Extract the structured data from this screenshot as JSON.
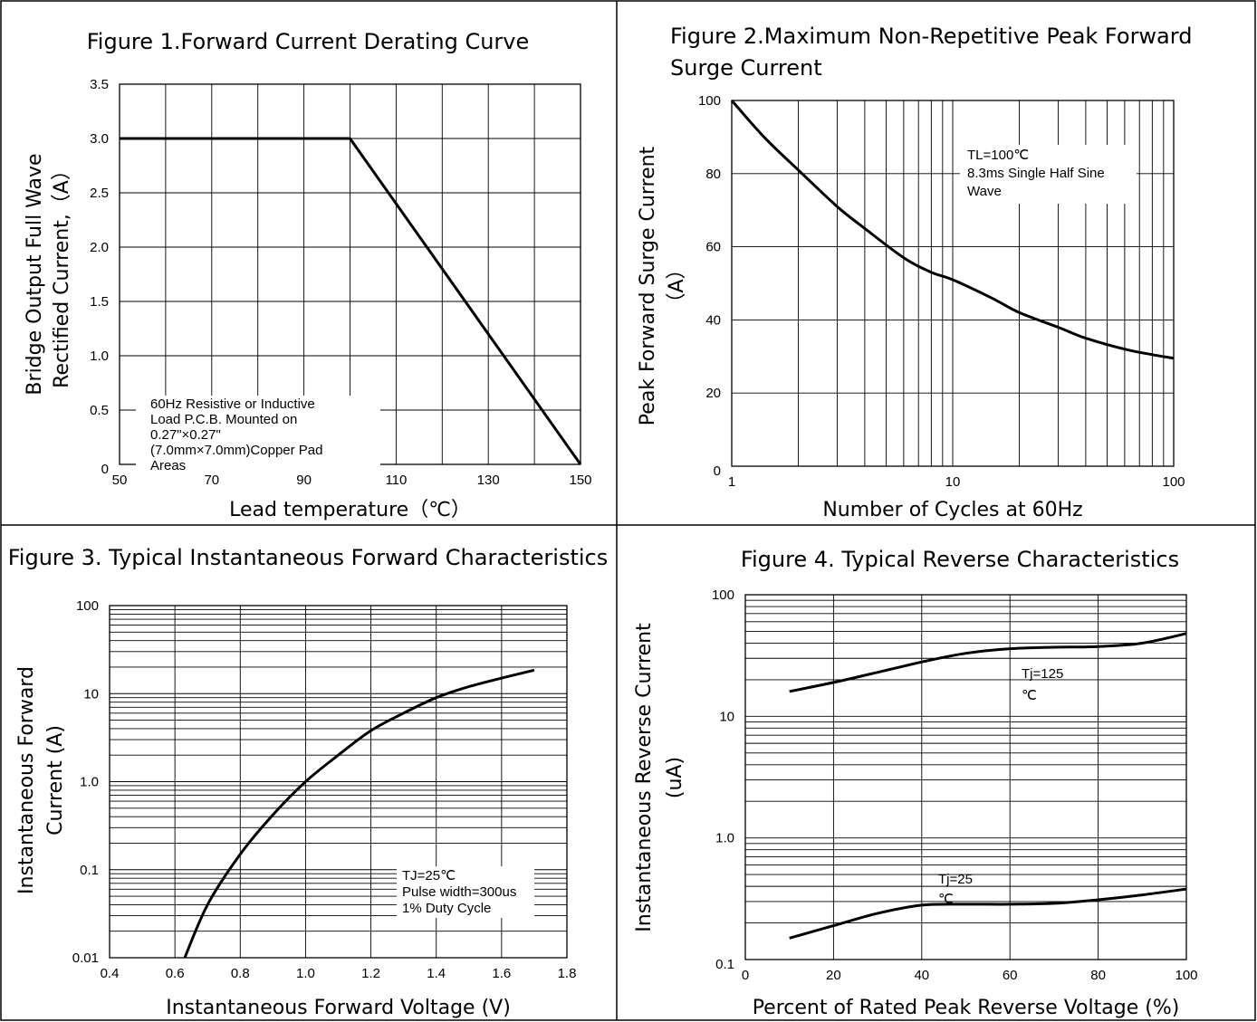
{
  "chart_data": [
    {
      "type": "line",
      "title": "Figure 1.Forward Current Derating Curve",
      "xlabel": "Lead temperature（℃）",
      "ylabel": [
        "Bridge Output Full Wave",
        "Rectified Current,（A）"
      ],
      "xlim": [
        50,
        150
      ],
      "ylim": [
        0,
        3.5
      ],
      "xticks": [
        "50",
        "70",
        "90",
        "110",
        "130",
        "150"
      ],
      "yticks": [
        "0",
        "0.5",
        "1.0",
        "1.5",
        "2.0",
        "2.5",
        "3.0",
        "3.5"
      ],
      "annotation": [
        "60Hz Resistive or Inductive",
        "Load P.C.B. Mounted on",
        "0.27\"×0.27\"",
        "(7.0mm×7.0mm)Copper Pad",
        "Areas"
      ],
      "series": [
        {
          "x": [
            50,
            100,
            150
          ],
          "y": [
            3.0,
            3.0,
            0.0
          ]
        }
      ],
      "grid": true
    },
    {
      "type": "line",
      "title": [
        "Figure 2.Maximum Non-Repetitive Peak Forward",
        "Surge Current"
      ],
      "xlabel": "Number of Cycles at 60Hz",
      "ylabel": [
        "Peak Forward Surge Current",
        "（A）"
      ],
      "xscale": "log",
      "xlim": [
        1,
        100
      ],
      "ylim": [
        0,
        100
      ],
      "xticks": [
        "1",
        "10",
        "100"
      ],
      "yticks": [
        "0",
        "20",
        "40",
        "60",
        "80",
        "100"
      ],
      "annotation": [
        "TL=100℃",
        "8.3ms Single Half Sine",
        "Wave"
      ],
      "series": [
        {
          "x": [
            1,
            1.4,
            2,
            3,
            4,
            6,
            8,
            10,
            15,
            20,
            30,
            40,
            60,
            80,
            100
          ],
          "y": [
            100,
            90,
            81,
            71,
            65,
            57,
            53,
            51,
            46,
            42,
            38,
            35,
            32,
            30.5,
            29.5
          ]
        }
      ],
      "grid": true
    },
    {
      "type": "line",
      "title": "Figure 3. Typical Instantaneous Forward Characteristics",
      "xlabel": "Instantaneous Forward Voltage (V)",
      "ylabel": [
        "Instantaneous Forward",
        "Current (A)"
      ],
      "yscale": "log",
      "xlim": [
        0.4,
        1.8
      ],
      "ylim": [
        0.01,
        100
      ],
      "xticks": [
        "0.4",
        "0.6",
        "0.8",
        "1.0",
        "1.2",
        "1.4",
        "1.6",
        "1.8"
      ],
      "yticks": [
        "0.01",
        "0.1",
        "1.0",
        "10",
        "100"
      ],
      "annotation": [
        "TJ=25℃",
        "Pulse width=300us",
        "1% Duty Cycle"
      ],
      "series": [
        {
          "x": [
            0.63,
            0.7,
            0.8,
            0.9,
            1.0,
            1.1,
            1.2,
            1.3,
            1.4,
            1.5,
            1.6,
            1.7
          ],
          "y": [
            0.01,
            0.04,
            0.15,
            0.42,
            1.0,
            2.0,
            3.8,
            6.0,
            9.0,
            12.0,
            15.0,
            18.5
          ]
        }
      ],
      "grid": true
    },
    {
      "type": "line",
      "title": "Figure 4. Typical Reverse Characteristics",
      "xlabel": "Percent of  Rated Peak Reverse Voltage (%)",
      "ylabel": [
        "Instantaneous Reverse Current",
        "(uA)"
      ],
      "yscale": "log",
      "xlim": [
        0,
        100
      ],
      "ylim": [
        0.1,
        100
      ],
      "xticks": [
        "0",
        "20",
        "40",
        "60",
        "80",
        "100"
      ],
      "yticks": [
        "0.1",
        "1.0",
        "10",
        "100"
      ],
      "annotations": [
        [
          "Tj=125",
          "℃"
        ],
        [
          "Tj=25",
          "℃"
        ]
      ],
      "series": [
        {
          "name": "Tj=125℃",
          "x": [
            10,
            20,
            30,
            40,
            50,
            60,
            70,
            80,
            90,
            100
          ],
          "y": [
            16,
            19,
            23,
            28,
            33,
            36,
            37,
            37.5,
            40,
            48
          ]
        },
        {
          "name": "Tj=25℃",
          "x": [
            10,
            20,
            30,
            40,
            50,
            60,
            70,
            80,
            90,
            100
          ],
          "y": [
            0.15,
            0.19,
            0.24,
            0.28,
            0.285,
            0.285,
            0.29,
            0.31,
            0.34,
            0.38
          ]
        }
      ],
      "grid": true
    }
  ]
}
